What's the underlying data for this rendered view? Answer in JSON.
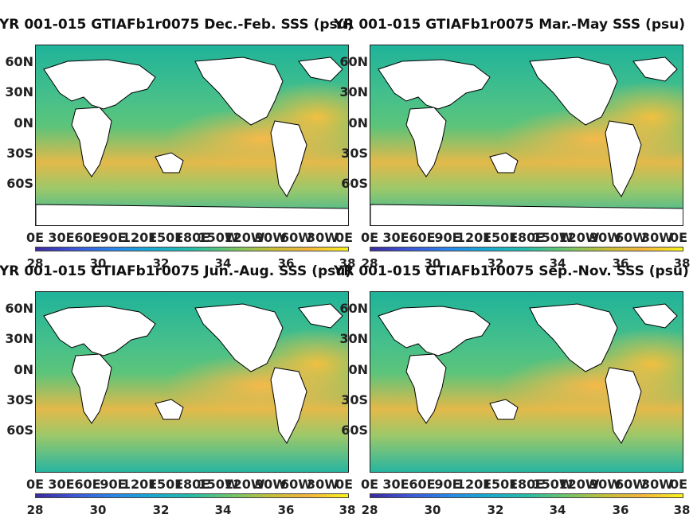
{
  "panels": [
    {
      "title": "YR 001-015 GTIAFb1r0075 Dec.-Feb. SSS (psu)"
    },
    {
      "title": "YR 001-015 GTIAFb1r0075 Mar.-May SSS (psu)"
    },
    {
      "title": "YR 001-015 GTIAFb1r0075 Jun.-Aug. SSS (psu)"
    },
    {
      "title": "YR 001-015 GTIAFb1r0075 Sep.-Nov. SSS (psu)"
    }
  ],
  "lat_labels": [
    "60N",
    "30N",
    "0N",
    "30S",
    "60S"
  ],
  "lon_labels": [
    "0E",
    "30E",
    "60E",
    "90E",
    "120E",
    "150E",
    "180E",
    "150W",
    "120W",
    "90W",
    "60W",
    "30W",
    "0E"
  ],
  "colorbar": {
    "ticks": [
      "28",
      "30",
      "32",
      "34",
      "36",
      "38"
    ],
    "min": 28,
    "max": 38
  },
  "colors": {
    "land": "#ffffff",
    "low": "#3b2a9e",
    "high": "#f8f21c",
    "mid": "#27bca8"
  }
}
